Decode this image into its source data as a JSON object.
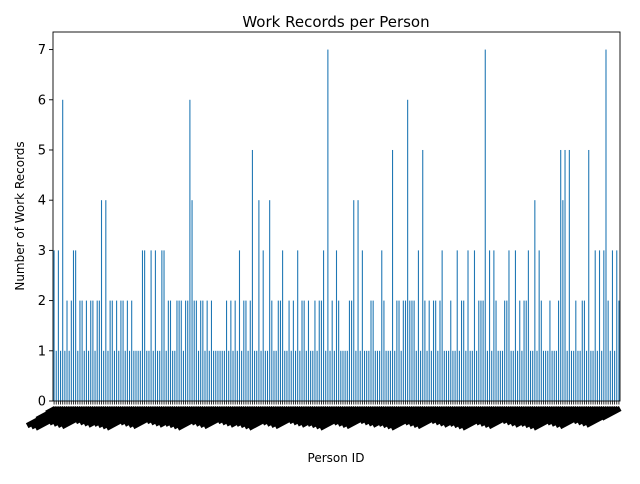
{
  "chart_data": {
    "type": "bar",
    "title": "Work Records per Person",
    "xlabel": "Person ID",
    "ylabel": "Number of Work Records",
    "ylim": [
      0,
      7.35
    ],
    "yticks": [
      0,
      1,
      2,
      3,
      4,
      5,
      6,
      7
    ],
    "bar_color": "#1f77b4",
    "values": [
      3,
      1,
      3,
      1,
      6,
      1,
      2,
      1,
      2,
      3,
      3,
      1,
      2,
      2,
      1,
      2,
      1,
      2,
      2,
      1,
      2,
      2,
      4,
      1,
      4,
      1,
      2,
      2,
      1,
      2,
      1,
      2,
      2,
      1,
      2,
      1,
      2,
      1,
      1,
      1,
      1,
      3,
      3,
      1,
      1,
      3,
      1,
      3,
      1,
      1,
      3,
      3,
      1,
      2,
      2,
      1,
      1,
      2,
      2,
      2,
      1,
      2,
      2,
      6,
      4,
      2,
      2,
      1,
      2,
      2,
      1,
      2,
      1,
      2,
      1,
      1,
      1,
      1,
      1,
      1,
      2,
      1,
      2,
      1,
      2,
      1,
      3,
      1,
      2,
      2,
      1,
      2,
      5,
      1,
      1,
      4,
      1,
      3,
      1,
      1,
      4,
      2,
      1,
      1,
      2,
      2,
      3,
      1,
      1,
      2,
      1,
      2,
      1,
      3,
      1,
      2,
      2,
      1,
      2,
      1,
      1,
      2,
      1,
      2,
      2,
      3,
      1,
      7,
      1,
      2,
      1,
      3,
      2,
      1,
      1,
      1,
      1,
      2,
      2,
      4,
      1,
      4,
      1,
      3,
      1,
      1,
      1,
      2,
      2,
      1,
      1,
      1,
      3,
      2,
      1,
      1,
      1,
      5,
      1,
      2,
      2,
      1,
      2,
      2,
      6,
      2,
      2,
      2,
      1,
      3,
      1,
      5,
      2,
      1,
      2,
      1,
      2,
      2,
      1,
      2,
      3,
      1,
      1,
      1,
      2,
      1,
      1,
      3,
      1,
      2,
      2,
      1,
      3,
      1,
      1,
      3,
      1,
      2,
      2,
      2,
      7,
      1,
      3,
      1,
      3,
      2,
      1,
      1,
      1,
      2,
      2,
      3,
      1,
      1,
      3,
      1,
      2,
      1,
      2,
      2,
      3,
      1,
      1,
      4,
      1,
      3,
      2,
      1,
      1,
      1,
      2,
      1,
      1,
      1,
      2,
      5,
      4,
      5,
      1,
      5,
      1,
      1,
      2,
      1,
      1,
      2,
      2,
      1,
      5,
      1,
      1,
      3,
      1,
      3,
      1,
      3,
      7,
      2,
      1,
      3,
      1,
      3,
      2
    ]
  }
}
